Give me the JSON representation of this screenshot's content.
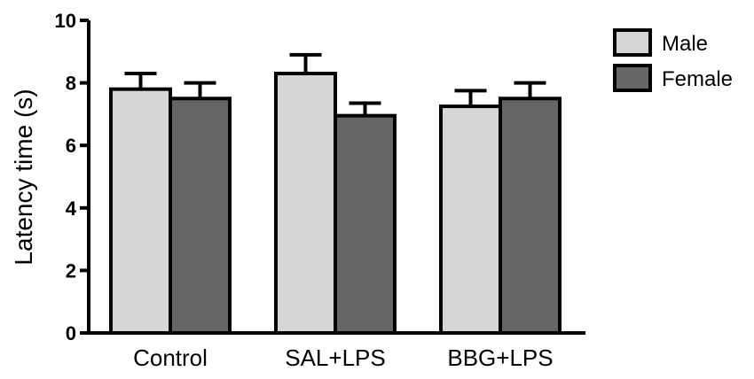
{
  "chart_data": {
    "type": "bar",
    "title": "",
    "xlabel": "",
    "ylabel": "Latency time (s)",
    "ylim": [
      0,
      10
    ],
    "yticks": [
      0,
      2,
      4,
      6,
      8,
      10
    ],
    "categories": [
      "Control",
      "SAL+LPS",
      "BBG+LPS"
    ],
    "series": [
      {
        "name": "Male",
        "values": [
          7.8,
          8.3,
          7.25
        ],
        "errors": [
          0.5,
          0.6,
          0.5
        ],
        "color": "#d6d6d6"
      },
      {
        "name": "Female",
        "values": [
          7.5,
          6.95,
          7.5
        ],
        "errors": [
          0.5,
          0.4,
          0.5
        ],
        "color": "#666666"
      }
    ],
    "grid": false,
    "legend": "top-right"
  }
}
